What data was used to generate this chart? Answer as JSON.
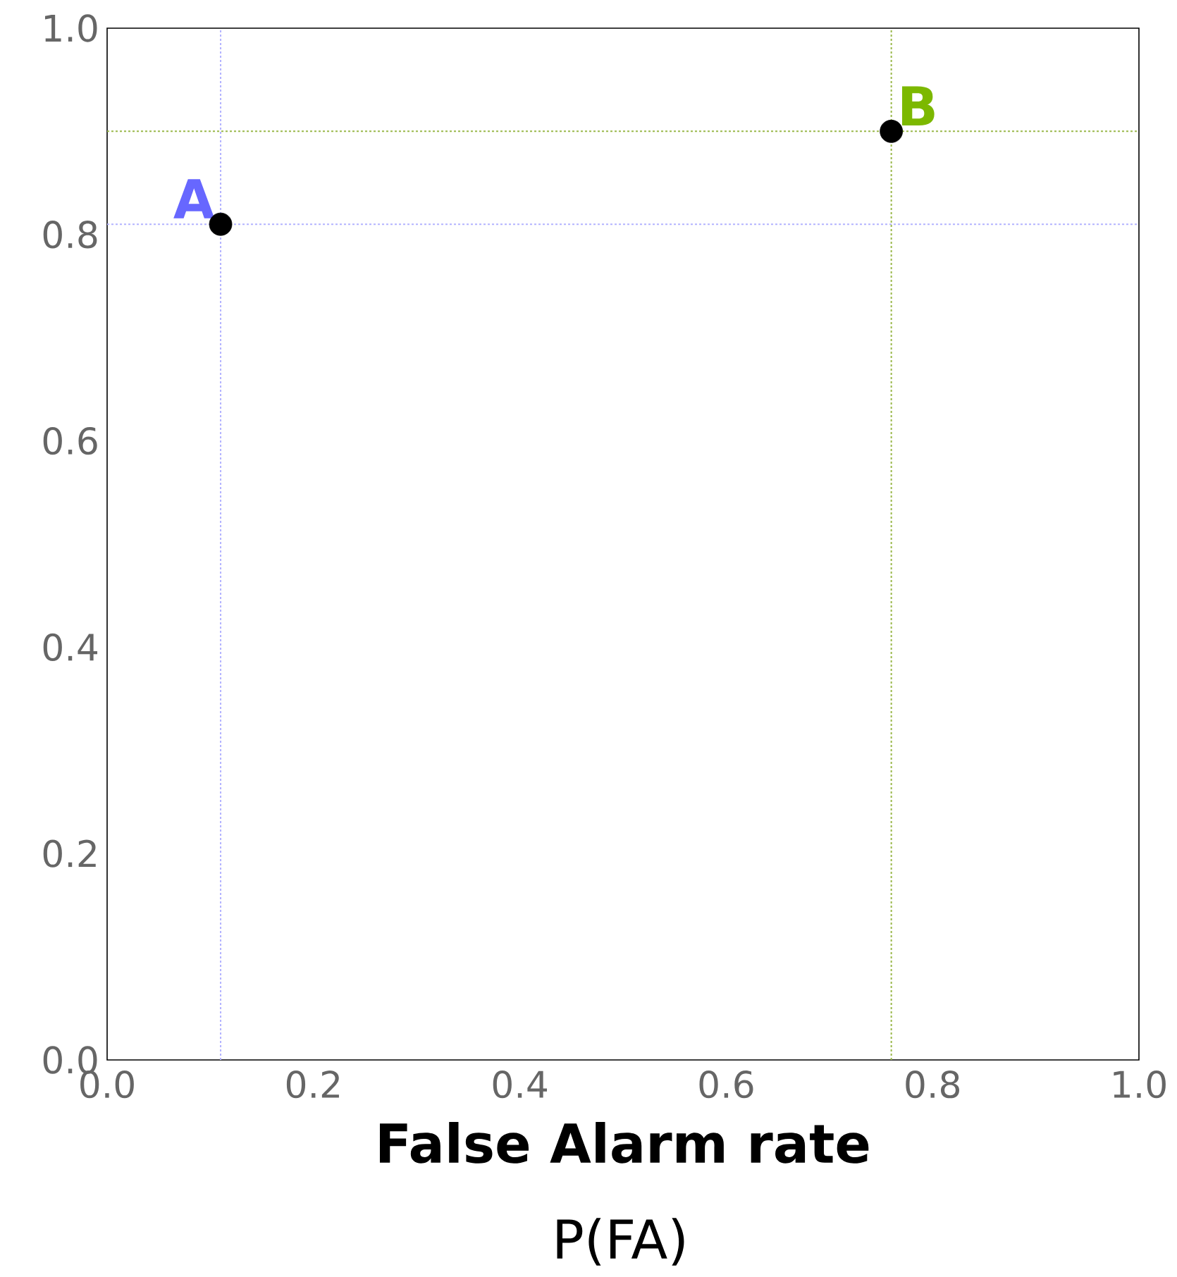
{
  "chart_data": {
    "type": "scatter",
    "xlabel": "False Alarm rate",
    "x": [
      0.11,
      0.76
    ],
    "values": [
      0.81,
      0.9
    ],
    "color": "#000000",
    "marker": "circle",
    "xlim": [
      0,
      1
    ],
    "ylim": [
      0,
      1
    ],
    "xticks": [
      {
        "value": 0,
        "label": "0.0"
      },
      {
        "value": 0.2,
        "label": "0.2"
      },
      {
        "value": 0.4,
        "label": "0.4"
      },
      {
        "value": 0.6,
        "label": "0.6"
      },
      {
        "value": 0.8,
        "label": "0.8"
      },
      {
        "value": 1,
        "label": "1.0"
      }
    ],
    "yticks": [
      {
        "value": 0,
        "label": "0.0"
      },
      {
        "value": 0.2,
        "label": "0.2"
      },
      {
        "value": 0.4,
        "label": "0.4"
      },
      {
        "value": 0.6,
        "label": "0.6"
      },
      {
        "value": 0.8,
        "label": "0.8"
      },
      {
        "value": 1,
        "label": "1.0"
      }
    ],
    "ref_lines": [
      {
        "axis": "x",
        "value": 0.11,
        "color": "#b3b3ff",
        "line_style": "dotted"
      },
      {
        "axis": "y",
        "value": 0.81,
        "color": "#b3b3ff",
        "line_style": "dotted"
      },
      {
        "axis": "x",
        "value": 0.76,
        "color": "#9ab84a",
        "line_style": "dotted"
      },
      {
        "axis": "y",
        "value": 0.9,
        "color": "#9ab84a",
        "line_style": "dotted"
      }
    ],
    "annotations": [
      {
        "text": "A",
        "x": 0.11,
        "y": 0.81
      },
      {
        "text": "B",
        "x": 0.76,
        "y": 0.9
      },
      "P(FA)"
    ]
  }
}
